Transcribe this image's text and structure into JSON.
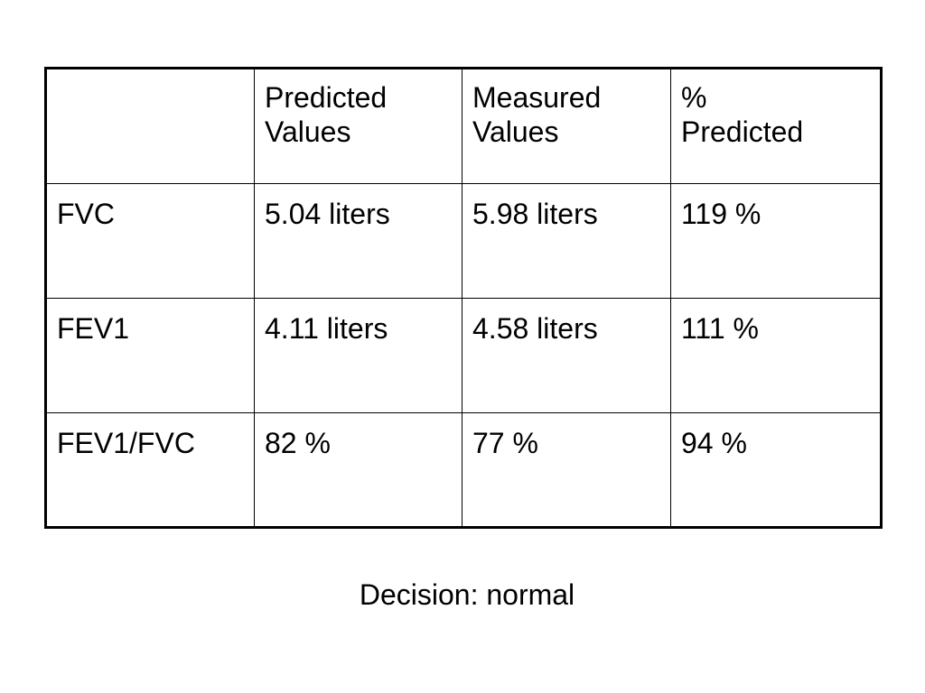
{
  "table": {
    "headers": [
      "",
      "Predicted\nValues",
      "Measured\nValues",
      "%\nPredicted"
    ],
    "rows": [
      {
        "label": "FVC",
        "predicted": "5.04 liters",
        "measured": "5.98 liters",
        "percent": "119 %"
      },
      {
        "label": "FEV1",
        "predicted": "4.11 liters",
        "measured": "4.58 liters",
        "percent": "111 %"
      },
      {
        "label": "FEV1/FVC",
        "predicted": "82 %",
        "measured": "77 %",
        "percent": "94 %"
      }
    ]
  },
  "decision": "Decision: normal"
}
